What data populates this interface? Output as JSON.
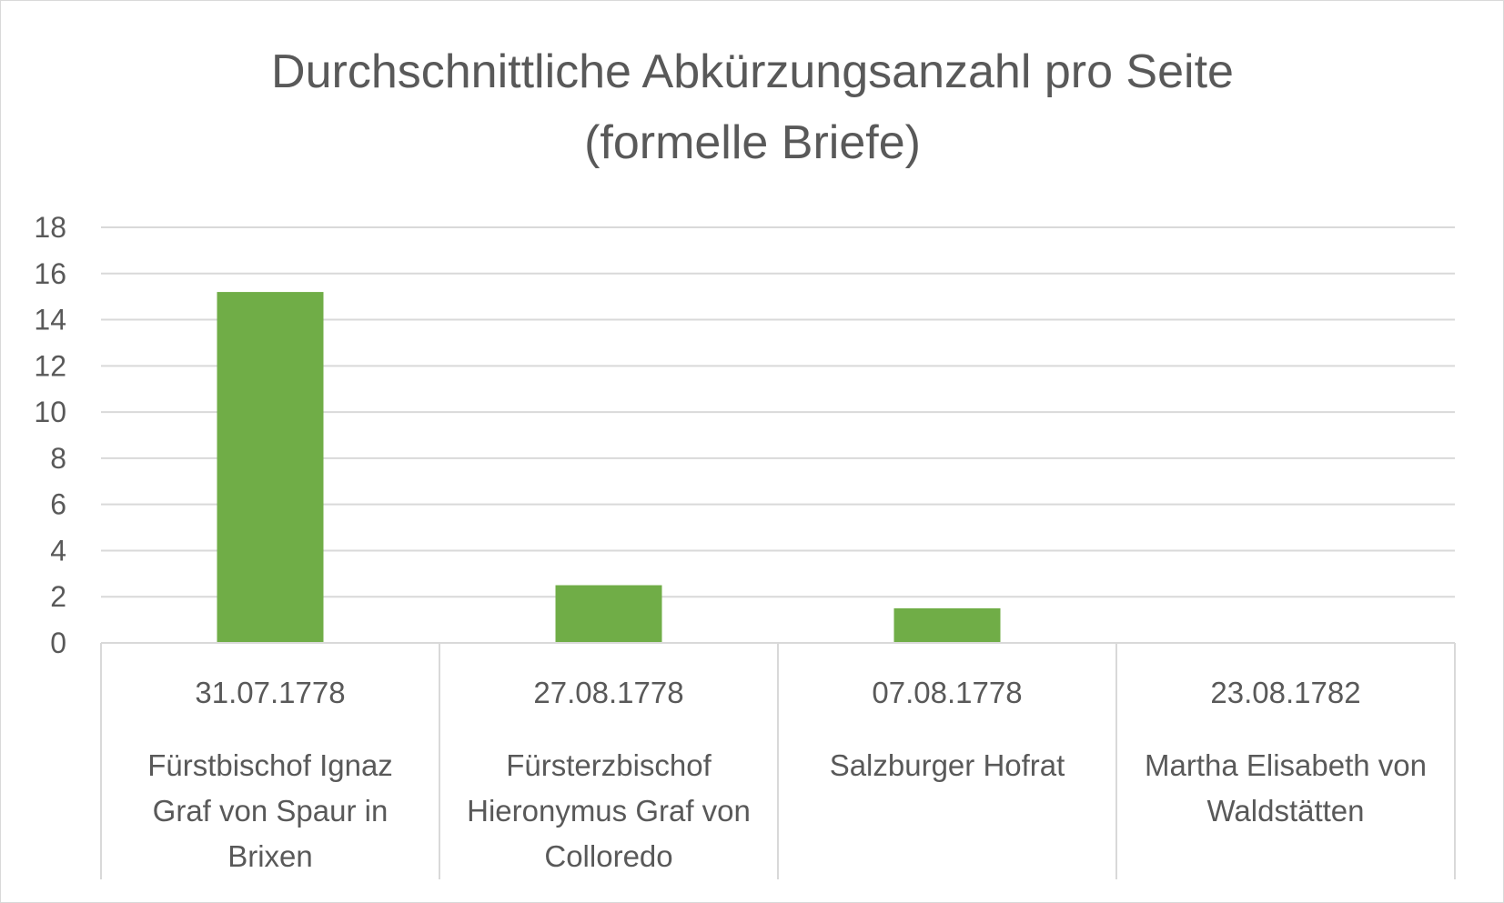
{
  "chart_data": {
    "type": "bar",
    "title": "Durchschnittliche Abkürzungsanzahl pro Seite",
    "subtitle": "(formelle Briefe)",
    "xlabel": "",
    "ylabel": "",
    "ylim": [
      0,
      18
    ],
    "yticks": [
      0,
      2,
      4,
      6,
      8,
      10,
      12,
      14,
      16,
      18
    ],
    "grid": true,
    "legend": "none",
    "bar_color": "#70ad47",
    "categories": [
      {
        "date": "31.07.1778",
        "lines": [
          "Fürstbischof Ignaz",
          "Graf von Spaur in",
          "Brixen"
        ]
      },
      {
        "date": "27.08.1778",
        "lines": [
          "Fürsterzbischof",
          "Hieronymus Graf von",
          "Colloredo"
        ]
      },
      {
        "date": "07.08.1778",
        "lines": [
          "Salzburger Hofrat"
        ]
      },
      {
        "date": "23.08.1782",
        "lines": [
          "Martha Elisabeth von",
          "Waldstätten"
        ]
      }
    ],
    "values": [
      15.2,
      2.5,
      1.5,
      0
    ]
  }
}
